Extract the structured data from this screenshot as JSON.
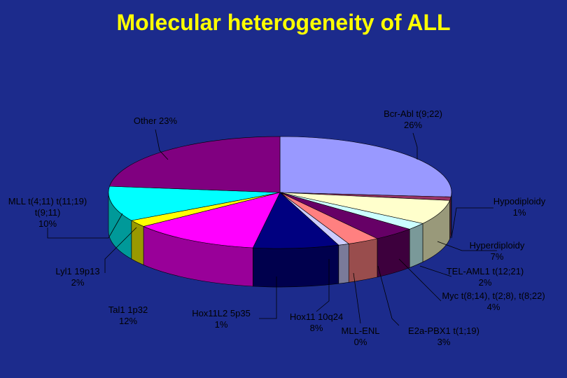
{
  "chart_data": {
    "type": "pie",
    "title": "Molecular heterogeneity of ALL",
    "categories": [
      "Bcr-Abl t(9;22)",
      "Hypodiploidy",
      "Hyperdiploidy",
      "TEL-AML1 t(12;21)",
      "Myc t(8;14), t(2;8), t(8;22)",
      "E2a-PBX1 t(1;19)",
      "MLL-ENL",
      "Hox11L2 5p35",
      "Hox11 10q24",
      "Tal1 1p32",
      "Lyl1 19p13",
      "MLL t(4;11) t(11;19) t(9;11)",
      "Other"
    ],
    "values": [
      26,
      1,
      7,
      2,
      4,
      3,
      0,
      1,
      8,
      12,
      2,
      10,
      23
    ],
    "value_labels": [
      "26%",
      "1%",
      "7%",
      "2%",
      "4%",
      "3%",
      "0%",
      "1%",
      "8%",
      "12%",
      "2%",
      "10%",
      "23%"
    ],
    "colors": [
      "#9999ff",
      "#993366",
      "#ffffcc",
      "#ccffff",
      "#660066",
      "#ff8080",
      "#0066cc",
      "#ccccff",
      "#000080",
      "#ff00ff",
      "#ffff00",
      "#00ffff",
      "#800080"
    ]
  }
}
